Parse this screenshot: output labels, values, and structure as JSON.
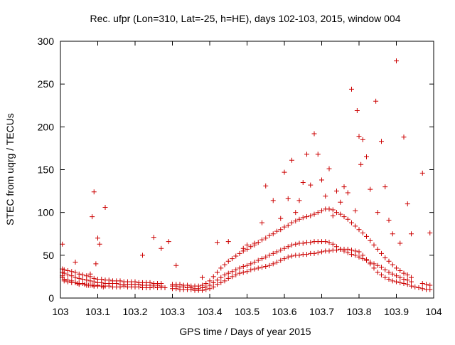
{
  "colors": {
    "series": "#cc0000",
    "axis": "#000000",
    "background": "#ffffff"
  },
  "chart_data": {
    "type": "scatter",
    "title": "Rec. ufpr (Lon=310, Lat=-25, h=HE), days 102-103, 2015, window 004",
    "xlabel": "GPS time / Days of year 2015",
    "ylabel": "STEC from uqrg / TECUs",
    "xlim": [
      103,
      104
    ],
    "ylim": [
      0,
      300
    ],
    "xticks": [
      103,
      103.1,
      103.2,
      103.3,
      103.4,
      103.5,
      103.6,
      103.7,
      103.8,
      103.9,
      104
    ],
    "xtick_labels": [
      "103",
      "103.1",
      "103.2",
      "103.3",
      "103.4",
      "103.5",
      "103.6",
      "103.7",
      "103.8",
      "103.9",
      "104"
    ],
    "yticks": [
      0,
      50,
      100,
      150,
      200,
      250,
      300
    ],
    "ytick_labels": [
      "0",
      "50",
      "100",
      "150",
      "200",
      "250",
      "300"
    ],
    "grid": false,
    "marker": "plus",
    "series": [
      {
        "x": [
          103.005,
          103.005,
          103.01,
          103.01,
          103.02,
          103.02,
          103.03,
          103.03,
          103.04,
          103.045,
          103.05,
          103.05,
          103.06,
          103.065,
          103.07,
          103.075,
          103.08,
          103.085,
          103.09,
          103.09,
          103.1,
          103.1,
          103.11,
          103.115,
          103.12,
          103.13,
          103.14,
          103.15,
          103.16,
          103.17,
          103.18,
          103.19,
          103.2,
          103.21,
          103.22,
          103.23,
          103.24,
          103.25,
          103.26,
          103.27,
          103.28,
          103.3,
          103.31,
          103.32,
          103.33,
          103.34,
          103.35,
          103.36,
          103.37,
          103.38,
          103.39,
          103.4,
          103.41,
          103.42,
          103.43,
          103.44,
          103.45,
          103.46,
          103.47,
          103.48,
          103.49,
          103.5,
          103.51,
          103.52,
          103.53,
          103.54,
          103.55,
          103.56,
          103.57,
          103.58,
          103.59,
          103.6,
          103.61,
          103.62,
          103.63,
          103.64,
          103.65,
          103.66,
          103.67,
          103.68,
          103.69,
          103.7,
          103.71,
          103.72,
          103.73,
          103.74,
          103.75,
          103.76,
          103.77,
          103.78,
          103.79,
          103.8,
          103.81,
          103.82,
          103.83,
          103.84,
          103.85,
          103.86,
          103.87,
          103.88,
          103.89,
          103.9,
          103.91,
          103.92,
          103.93,
          103.94,
          103.95,
          103.96,
          103.97,
          103.98,
          103.99
        ],
        "y": [
          26,
          24,
          22,
          20,
          21,
          19,
          20,
          18,
          18,
          17,
          17,
          16,
          17,
          16,
          15,
          15,
          15,
          15,
          14,
          14,
          14,
          15,
          14,
          13,
          14,
          14,
          13,
          13,
          13,
          14,
          13,
          13,
          13,
          13,
          12,
          12,
          12,
          13,
          12,
          12,
          12,
          11,
          11,
          10,
          10,
          10,
          10,
          9,
          9,
          9,
          10,
          11,
          13,
          16,
          18,
          20,
          23,
          25,
          27,
          29,
          30,
          31,
          33,
          34,
          35,
          36,
          37,
          38,
          40,
          42,
          44,
          46,
          48,
          49,
          50,
          50,
          51,
          51,
          52,
          52,
          53,
          54,
          55,
          55,
          56,
          56,
          57,
          57,
          57,
          56,
          55,
          54,
          50,
          45,
          40,
          35,
          30,
          27,
          24,
          22,
          20,
          19,
          18,
          17,
          16,
          14,
          13,
          12,
          11,
          10,
          10
        ]
      },
      {
        "x": [
          103.005,
          103.01,
          103.02,
          103.03,
          103.04,
          103.05,
          103.06,
          103.07,
          103.08,
          103.09,
          103.1,
          103.11,
          103.12,
          103.13,
          103.14,
          103.15,
          103.16,
          103.17,
          103.18,
          103.19,
          103.2,
          103.21,
          103.22,
          103.23,
          103.24,
          103.25,
          103.26,
          103.27,
          103.3,
          103.31,
          103.32,
          103.33,
          103.34,
          103.35,
          103.36,
          103.37,
          103.38,
          103.39,
          103.4,
          103.41,
          103.42,
          103.43,
          103.44,
          103.45,
          103.46,
          103.47,
          103.48,
          103.49,
          103.5,
          103.51,
          103.52,
          103.53,
          103.54,
          103.55,
          103.56,
          103.57,
          103.58,
          103.59,
          103.6,
          103.61,
          103.62,
          103.63,
          103.64,
          103.65,
          103.66,
          103.67,
          103.68,
          103.69,
          103.7,
          103.71,
          103.72,
          103.73,
          103.74,
          103.75,
          103.76,
          103.77,
          103.78,
          103.79,
          103.8,
          103.81,
          103.82,
          103.83,
          103.84,
          103.85,
          103.86,
          103.87,
          103.88,
          103.89,
          103.9,
          103.91,
          103.92,
          103.93,
          103.94,
          103.97,
          103.98,
          103.99
        ],
        "y": [
          30,
          29,
          27,
          26,
          24,
          23,
          22,
          21,
          20,
          19,
          18,
          18,
          17,
          17,
          17,
          17,
          16,
          16,
          16,
          16,
          16,
          16,
          15,
          15,
          15,
          15,
          15,
          14,
          14,
          14,
          13,
          13,
          12,
          12,
          11,
          11,
          12,
          13,
          15,
          18,
          21,
          24,
          27,
          29,
          31,
          33,
          35,
          37,
          38,
          40,
          42,
          44,
          46,
          48,
          50,
          52,
          54,
          56,
          58,
          60,
          62,
          63,
          64,
          64,
          65,
          65,
          66,
          66,
          66,
          66,
          65,
          63,
          60,
          57,
          55,
          53,
          51,
          50,
          48,
          46,
          44,
          42,
          40,
          38,
          36,
          33,
          30,
          28,
          26,
          24,
          22,
          21,
          19,
          17,
          16,
          15
        ]
      },
      {
        "x": [
          103.005,
          103.01,
          103.02,
          103.03,
          103.04,
          103.05,
          103.06,
          103.07,
          103.08,
          103.09,
          103.1,
          103.11,
          103.12,
          103.13,
          103.14,
          103.15,
          103.16,
          103.17,
          103.18,
          103.19,
          103.2,
          103.21,
          103.22,
          103.23,
          103.24,
          103.25,
          103.26,
          103.27,
          103.3,
          103.31,
          103.32,
          103.33,
          103.34,
          103.35,
          103.36,
          103.37,
          103.38,
          103.39,
          103.4,
          103.41,
          103.42,
          103.43,
          103.44,
          103.45,
          103.46,
          103.47,
          103.48,
          103.49,
          103.5,
          103.51,
          103.52,
          103.53,
          103.54,
          103.55,
          103.56,
          103.57,
          103.58,
          103.59,
          103.6,
          103.61,
          103.62,
          103.63,
          103.64,
          103.65,
          103.66,
          103.67,
          103.68,
          103.69,
          103.7,
          103.71,
          103.72,
          103.73,
          103.74,
          103.75,
          103.76,
          103.77,
          103.78,
          103.79,
          103.8,
          103.81,
          103.82,
          103.83,
          103.84,
          103.85,
          103.86,
          103.87,
          103.88,
          103.89,
          103.9,
          103.91,
          103.92,
          103.93,
          103.94
        ],
        "y": [
          34,
          33,
          32,
          31,
          30,
          28,
          27,
          26,
          25,
          23,
          22,
          22,
          21,
          21,
          20,
          20,
          20,
          19,
          19,
          19,
          19,
          18,
          18,
          18,
          18,
          17,
          17,
          17,
          16,
          16,
          16,
          15,
          15,
          14,
          14,
          14,
          15,
          17,
          20,
          25,
          30,
          35,
          39,
          43,
          46,
          49,
          52,
          55,
          57,
          60,
          62,
          65,
          68,
          70,
          73,
          75,
          78,
          80,
          83,
          85,
          88,
          90,
          92,
          94,
          95,
          96,
          98,
          100,
          102,
          104,
          104,
          103,
          100,
          98,
          95,
          92,
          88,
          84,
          80,
          76,
          72,
          67,
          62,
          57,
          52,
          47,
          43,
          39,
          35,
          32,
          29,
          27,
          24
        ]
      },
      {
        "x": [
          103.005,
          103.04,
          103.08,
          103.085,
          103.09,
          103.095,
          103.1,
          103.105,
          103.12,
          103.22,
          103.25,
          103.27,
          103.29,
          103.31,
          103.38,
          103.42,
          103.45,
          103.49,
          103.5,
          103.52,
          103.54,
          103.55,
          103.57,
          103.59,
          103.6,
          103.61,
          103.62,
          103.63,
          103.64,
          103.65,
          103.66,
          103.67,
          103.68,
          103.69,
          103.7,
          103.71,
          103.72,
          103.73,
          103.74,
          103.75,
          103.76,
          103.77,
          103.78,
          103.79,
          103.795,
          103.8,
          103.805,
          103.81,
          103.82,
          103.83,
          103.845,
          103.85,
          103.86,
          103.87,
          103.88,
          103.89,
          103.9,
          103.91,
          103.92,
          103.93,
          103.94,
          103.97,
          103.99
        ],
        "y": [
          63,
          42,
          28,
          95,
          124,
          40,
          70,
          63,
          106,
          50,
          71,
          58,
          66,
          38,
          24,
          65,
          66,
          58,
          62,
          64,
          88,
          131,
          114,
          93,
          147,
          116,
          161,
          100,
          114,
          135,
          168,
          132,
          192,
          168,
          138,
          119,
          151,
          96,
          125,
          112,
          130,
          123,
          244,
          102,
          219,
          189,
          156,
          185,
          165,
          127,
          230,
          100,
          183,
          130,
          91,
          75,
          277,
          64,
          188,
          110,
          75,
          146,
          76
        ]
      }
    ]
  }
}
